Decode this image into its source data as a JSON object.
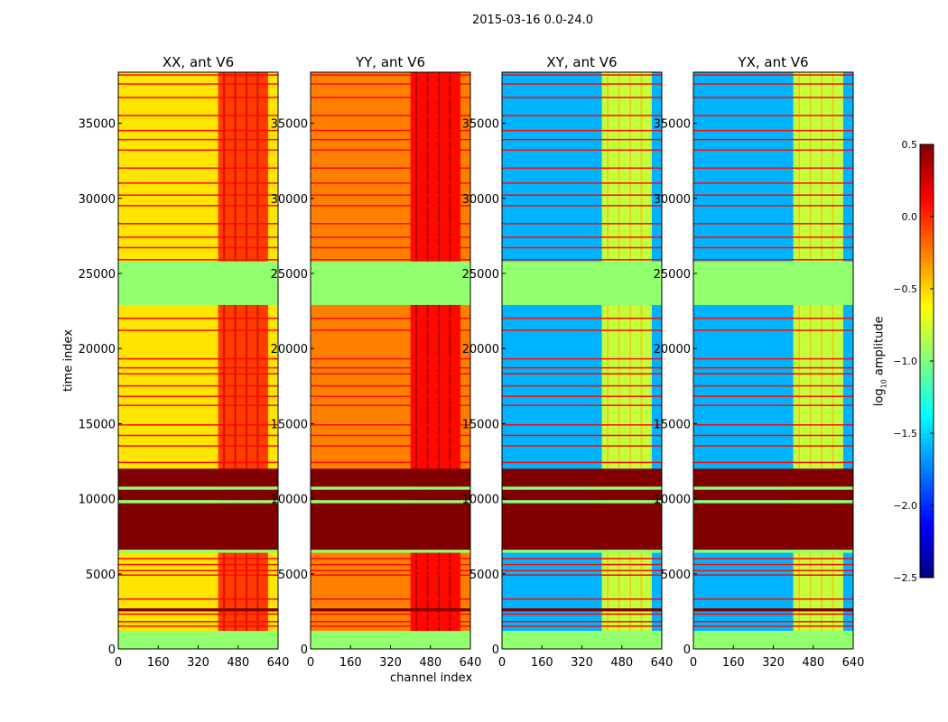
{
  "suptitle": "2015-03-16 0.0-24.0",
  "chart_data": {
    "type": "heatmap",
    "title": "2015-03-16 0.0-24.0",
    "xlabel": "channel index",
    "ylabel": "time index",
    "xlim": [
      0,
      640
    ],
    "ylim": [
      0,
      38400
    ],
    "xticks": [
      "0",
      "160",
      "320",
      "480",
      "640"
    ],
    "yticks": [
      "0",
      "5000",
      "10000",
      "15000",
      "20000",
      "25000",
      "30000",
      "35000"
    ],
    "colorbar": {
      "label": "log10 amplitude",
      "label_main": "log",
      "label_sub": "10",
      "label_rest": " amplitude",
      "range": [
        -2.5,
        0.5
      ],
      "ticks": [
        "0.5",
        "0.0",
        "−0.5",
        "−1.0",
        "−1.5",
        "−2.0",
        "−2.5"
      ],
      "colormap": "jet"
    },
    "flag_value": -0.95,
    "flagged_time_ranges": [
      [
        0,
        1200
      ],
      [
        6400,
        6600
      ],
      [
        9700,
        9900
      ],
      [
        10600,
        10800
      ],
      [
        22900,
        25800
      ]
    ],
    "saturated_time_ranges": [
      [
        2500,
        2700
      ],
      [
        6600,
        9700
      ],
      [
        9900,
        10600
      ],
      [
        10800,
        12000
      ]
    ],
    "stripe_times": [
      1500,
      1800,
      2300,
      3300,
      4900,
      5200,
      5600,
      6000,
      12400,
      13500,
      14200,
      14900,
      16200,
      16800,
      17500,
      18300,
      18700,
      19300,
      21200,
      22000,
      25900,
      26700,
      27400,
      28300,
      29500,
      30200,
      31000,
      32000,
      33200,
      33900,
      34500,
      35500,
      36700,
      37600,
      38200
    ],
    "panels": [
      {
        "title": "XX, ant V6",
        "base": -0.55,
        "high_channels": [
          400,
          600
        ],
        "high": -0.05
      },
      {
        "title": "YY, ant V6",
        "base": -0.25,
        "high_channels": [
          400,
          600
        ],
        "high": 0.1
      },
      {
        "title": "XY, ant V6",
        "base": -1.6,
        "high_channels": [
          400,
          600
        ],
        "high": -0.8
      },
      {
        "title": "YX, ant V6",
        "base": -1.6,
        "high_channels": [
          400,
          600
        ],
        "high": -0.8
      }
    ]
  }
}
